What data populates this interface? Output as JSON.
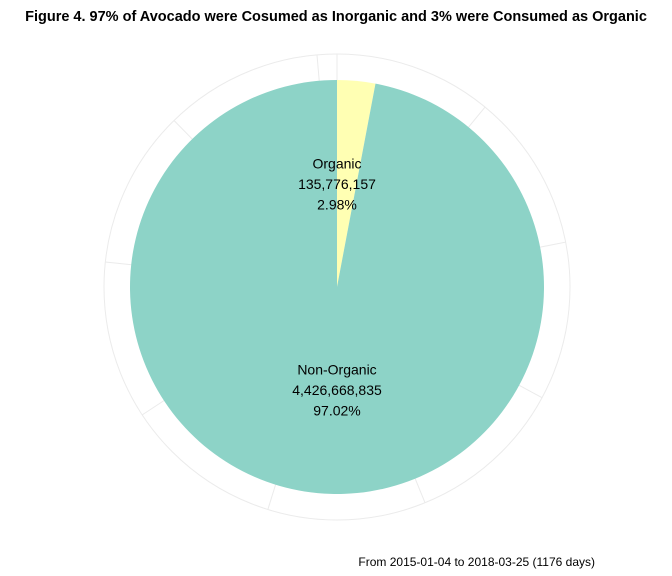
{
  "chart_data": {
    "type": "pie",
    "title": "Figure 4. 97% of Avocado were Cosumed as Inorganic and 3% were Consumed as Organic",
    "caption": "From 2015-01-04 to 2018-03-25 (1176 days)",
    "slices": [
      {
        "name": "Organic",
        "value": 135776157,
        "value_label": "135,776,157",
        "percent_label": "2.98%",
        "color": "#ffffb3"
      },
      {
        "name": "Non-Organic",
        "value": 4426668835,
        "value_label": "4,426,668,835",
        "percent_label": "97.02%",
        "color": "#8dd3c7"
      }
    ],
    "polar_grid": true,
    "legend": "none",
    "background": "#ffffff",
    "grid_color": "#ebebeb"
  }
}
